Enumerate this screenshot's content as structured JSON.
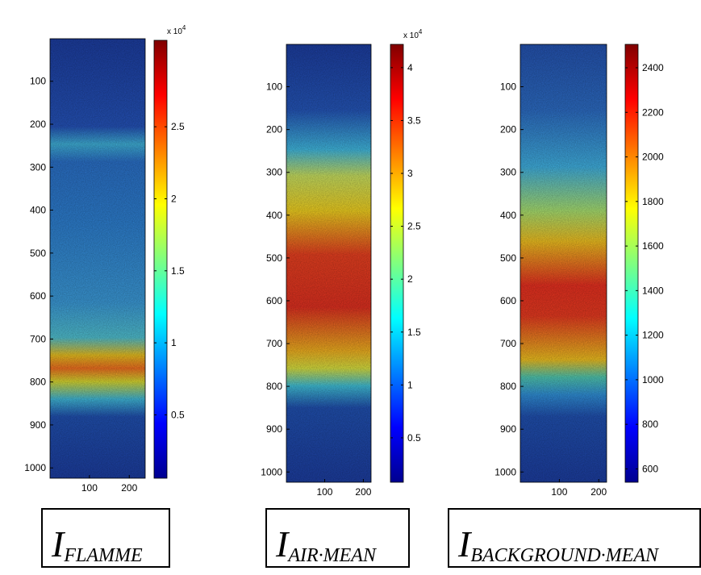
{
  "panels": [
    {
      "ylim": [
        1,
        1024
      ],
      "yticks": [
        100,
        200,
        300,
        400,
        500,
        600,
        700,
        800,
        900,
        1000
      ],
      "xlim": [
        1,
        240
      ],
      "xticks": [
        100,
        200
      ],
      "colorbar": {
        "clim": [
          0.06,
          3.1
        ],
        "ticks": [
          0.5,
          1,
          1.5,
          2,
          2.5
        ],
        "multiplier": "x 10",
        "exponent": "4"
      },
      "caption": {
        "symbol": "I",
        "subscript": "FLAMME"
      }
    },
    {
      "ylim": [
        1,
        1024
      ],
      "yticks": [
        100,
        200,
        300,
        400,
        500,
        600,
        700,
        800,
        900,
        1000
      ],
      "xlim": [
        1,
        220
      ],
      "xticks": [
        100,
        200
      ],
      "colorbar": {
        "clim": [
          0.08,
          4.22
        ],
        "ticks": [
          0.5,
          1,
          1.5,
          2,
          2.5,
          3,
          3.5,
          4
        ],
        "multiplier": "x 10",
        "exponent": "4"
      },
      "caption": {
        "symbol": "I",
        "subscript": "AIR·MEAN"
      }
    },
    {
      "ylim": [
        1,
        1024
      ],
      "yticks": [
        100,
        200,
        300,
        400,
        500,
        600,
        700,
        800,
        900,
        1000
      ],
      "xlim": [
        1,
        220
      ],
      "xticks": [
        100,
        200
      ],
      "colorbar": {
        "clim": [
          540,
          2505
        ],
        "ticks": [
          600,
          800,
          1000,
          1200,
          1400,
          1600,
          1800,
          2000,
          2200,
          2400
        ]
      },
      "caption": {
        "symbol": "I",
        "subscript": "BACKGROUND·MEAN"
      }
    }
  ]
}
